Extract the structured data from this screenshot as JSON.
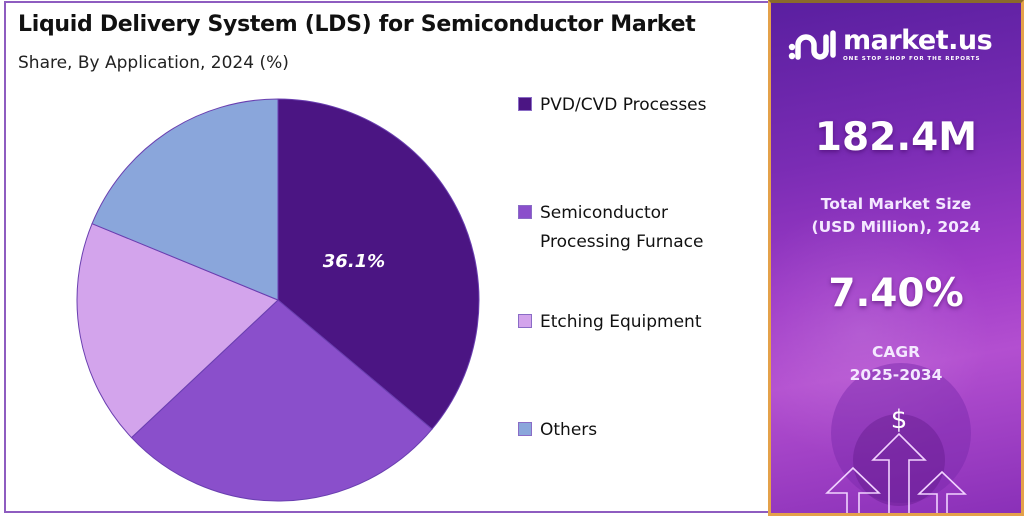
{
  "header": {
    "title": "Liquid Delivery System (LDS) for Semiconductor Market",
    "subtitle": "Share, By Application, 2024 (%)"
  },
  "pie": {
    "highlight_label": "36.1%"
  },
  "legend": {
    "items": [
      {
        "label": "PVD/CVD Processes",
        "color": "#4b1583"
      },
      {
        "label": "Semiconductor\nProcessing Furnace",
        "color": "#8a4fcb"
      },
      {
        "label": "Etching Equipment",
        "color": "#d3a4ec"
      },
      {
        "label": "Others",
        "color": "#8aa6db"
      }
    ]
  },
  "sidebar": {
    "brand": {
      "name": "market.us",
      "tagline": "ONE STOP SHOP FOR THE REPORTS",
      "icon": "market-us-logo-icon"
    },
    "market_size": {
      "value": "182.4M",
      "label": "Total Market Size\n(USD Million), 2024"
    },
    "cagr": {
      "value": "7.40%",
      "label": "CAGR\n2025-2034"
    },
    "graphic": {
      "icon": "dollar-growth-arrows-icon",
      "symbol": "$"
    }
  },
  "chart_data": {
    "type": "pie",
    "title": "Liquid Delivery System (LDS) for Semiconductor Market",
    "subtitle": "Share, By Application, 2024 (%)",
    "categories": [
      "PVD/CVD Processes",
      "Semiconductor Processing Furnace",
      "Etching Equipment",
      "Others"
    ],
    "values": [
      36.1,
      26.9,
      18.2,
      18.8
    ],
    "colors": [
      "#4b1583",
      "#8a4fcb",
      "#d3a4ec",
      "#8aa6db"
    ],
    "labeled_values": {
      "PVD/CVD Processes": "36.1%"
    },
    "start_angle_deg": 0,
    "direction": "clockwise",
    "legend_position": "right",
    "annotations": {
      "total_market_size": "182.4M",
      "total_market_size_label": "Total Market Size (USD Million), 2024",
      "cagr": "7.40%",
      "cagr_period": "2025-2034"
    }
  }
}
